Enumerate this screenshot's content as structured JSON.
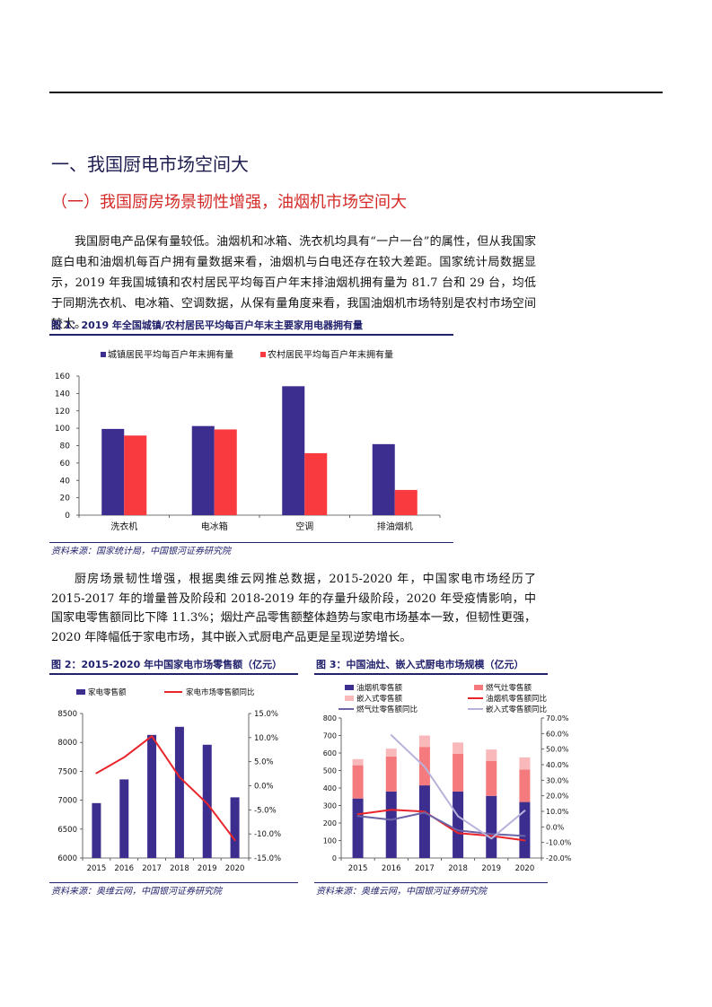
{
  "theme": {
    "section_title": "#1c1c4f",
    "subsection_title": "#d42a27",
    "figure_label": "#1f1f6b"
  },
  "section": {
    "title": "一、我国厨电市场空间大"
  },
  "subsection": {
    "title": "（一）我国厨房场景韧性增强，油烟机市场空间大"
  },
  "paragraphs": [
    "我国厨电产品保有量较低。油烟机和冰箱、洗衣机均具有“一户一台”的属性，但从我国家庭白电和油烟机每百户拥有量数据来看，油烟机与白电还存在较大差距。国家统计局数据显示，2019 年我国城镇和农村居民平均每百户年末排油烟机拥有量为 81.7 台和 29 台，均低于同期洗衣机、电冰箱、空调数据，从保有量角度来看，我国油烟机市场特别是农村市场空间较大。",
    "厨房场景韧性增强，根据奥维云网推总数据，2015-2020 年，中国家电市场经历了 2015-2017 年的增量普及阶段和 2018-2019 年的存量升级阶段，2020 年受疫情影响，中国家电零售额同比下降 11.3%；烟灶产品零售额整体趋势与家电市场基本一致，但韧性更强，2020 年降幅低于家电市场，其中嵌入式厨电产品更是呈现逆势增长。"
  ],
  "figures": [
    {
      "title": "图 1：2019 年全国城镇/农村居民平均每百户年末主要家用电器拥有量",
      "source": "资料来源：国家统计局，中国银河证券研究院"
    },
    {
      "title": "图 2：2015-2020 年中国家电市场零售额（亿元）",
      "source": "资料来源：奥维云网，中国银河证券研究院"
    },
    {
      "title": "图 3：中国油灶、嵌入式厨电市场规模（亿元）",
      "source": "资料来源：奥维云网，中国银河证券研究院"
    }
  ],
  "chart_data": [
    {
      "type": "bar",
      "categories": [
        "洗衣机",
        "电冰箱",
        "空调",
        "排油烟机"
      ],
      "series": [
        {
          "name": "城镇居民平均每百户年末拥有量",
          "kind": "bar",
          "values": [
            99.2,
            102.5,
            148.3,
            81.7
          ],
          "color": "#3b2e8e"
        },
        {
          "name": "农村居民平均每百户年末拥有量",
          "kind": "bar",
          "values": [
            91.6,
            98.6,
            71.3,
            29.0
          ],
          "color": "#f93a3f"
        }
      ],
      "y_left": {
        "range": [
          0,
          160
        ],
        "ticks": [
          0,
          20,
          40,
          60,
          80,
          100,
          120,
          140,
          160
        ],
        "tick_labels": [
          "0",
          "20",
          "40",
          "60",
          "80",
          "100",
          "120",
          "140",
          "160"
        ]
      },
      "grid": false,
      "legend": "top"
    },
    {
      "type": "bar+line",
      "categories": [
        "2015",
        "2016",
        "2017",
        "2018",
        "2019",
        "2020"
      ],
      "series": [
        {
          "name": "家电零售额",
          "kind": "bar",
          "axis": "left",
          "values": [
            6950,
            7360,
            8130,
            8270,
            7960,
            7050
          ],
          "color": "#3b2e8e"
        },
        {
          "name": "家电市场零售额同比",
          "kind": "line",
          "axis": "right",
          "values": [
            2.6,
            5.9,
            10.3,
            1.8,
            -3.7,
            -11.3
          ],
          "color": "#e8262c"
        }
      ],
      "y_left": {
        "range": [
          6000,
          8500
        ],
        "ticks": [
          6000,
          6500,
          7000,
          7500,
          8000,
          8500
        ],
        "tick_labels": [
          "6000",
          "6500",
          "7000",
          "7500",
          "8000",
          "8500"
        ]
      },
      "y_right": {
        "range": [
          -15,
          15
        ],
        "ticks": [
          -15,
          -10,
          -5,
          0,
          5,
          10,
          15
        ],
        "tick_labels": [
          "-15.0%",
          "-10.0%",
          "-5.0%",
          "0.0%",
          "5.0%",
          "10.0%",
          "15.0%"
        ]
      },
      "grid": false,
      "legend": "top"
    },
    {
      "type": "stacked-bar+line",
      "categories": [
        "2015",
        "2016",
        "2017",
        "2018",
        "2019",
        "2020"
      ],
      "series": [
        {
          "name": "油烟机零售额",
          "kind": "bar",
          "stack": "total",
          "axis": "left",
          "values": [
            340,
            380,
            415,
            380,
            355,
            320
          ],
          "color": "#3b2e8e"
        },
        {
          "name": "燃气灶零售额",
          "kind": "bar",
          "stack": "total",
          "axis": "left",
          "values": [
            190,
            200,
            220,
            215,
            200,
            185
          ],
          "color": "#f47a7e"
        },
        {
          "name": "嵌入式零售额",
          "kind": "bar",
          "stack": "total",
          "axis": "left",
          "values": [
            35,
            45,
            65,
            65,
            65,
            70
          ],
          "color": "#f9b8ba"
        },
        {
          "name": "油烟机零售额同比",
          "kind": "line",
          "axis": "right",
          "values": [
            8.1,
            11.0,
            9.8,
            -4.0,
            -5.8,
            -8.7
          ],
          "color": "#e8262c"
        },
        {
          "name": "燃气灶零售额同比",
          "kind": "line",
          "axis": "right",
          "values": [
            7.0,
            4.6,
            9.2,
            -2.3,
            -4.6,
            -5.8
          ],
          "color": "#6b64a8"
        },
        {
          "name": "嵌入式零售额同比",
          "kind": "line",
          "axis": "right",
          "values": [
            null,
            59.0,
            38.7,
            6.9,
            -7.5,
            10.4
          ],
          "color": "#b7b3da"
        }
      ],
      "y_left": {
        "range": [
          0,
          800
        ],
        "ticks": [
          0,
          100,
          200,
          300,
          400,
          500,
          600,
          700,
          800
        ],
        "tick_labels": [
          "0",
          "100",
          "200",
          "300",
          "400",
          "500",
          "600",
          "700",
          "800"
        ]
      },
      "y_right": {
        "range": [
          -20,
          70
        ],
        "ticks": [
          -20,
          -10,
          0,
          10,
          20,
          30,
          40,
          50,
          60,
          70
        ],
        "tick_labels": [
          "-20.0%",
          "-10.0%",
          "0.0%",
          "10.0%",
          "20.0%",
          "30.0%",
          "40.0%",
          "50.0%",
          "60.0%",
          "70.0%"
        ]
      },
      "grid": false,
      "legend": "top"
    }
  ]
}
